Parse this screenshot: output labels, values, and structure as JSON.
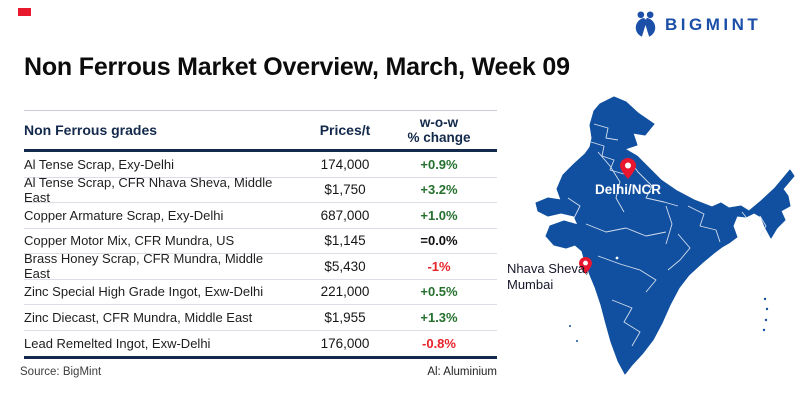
{
  "page": {
    "title": "Non Ferrous Market Overview, March, Week 09",
    "brand": "BIGMINT",
    "source": "Source: BigMint",
    "footnote": "Al: Aluminium"
  },
  "chart_data": {
    "type": "table",
    "title": "Non Ferrous Market Overview, March, Week 09",
    "columns": [
      "Non Ferrous grades",
      "Prices/t",
      "w-o-w % change"
    ],
    "header": {
      "grades": "Non Ferrous grades",
      "prices": "Prices/t",
      "change_line1": "w-o-w",
      "change_line2": "% change"
    },
    "rows": [
      {
        "grade": "Al Tense Scrap, Exy-Delhi",
        "price": "174,000",
        "change": "+0.9%",
        "direction": "up"
      },
      {
        "grade": "Al Tense Scrap, CFR Nhava Sheva, Middle East",
        "price": "$1,750",
        "change": "+3.2%",
        "direction": "up"
      },
      {
        "grade": "Copper Armature Scrap, Exy-Delhi",
        "price": "687,000",
        "change": "+1.0%",
        "direction": "up"
      },
      {
        "grade": "Copper Motor Mix, CFR Mundra, US",
        "price": "$1,145",
        "change": "=0.0%",
        "direction": "flat"
      },
      {
        "grade": "Brass Honey Scrap, CFR Mundra, Middle East",
        "price": "$5,430",
        "change": "-1%",
        "direction": "down"
      },
      {
        "grade": "Zinc Special High Grade Ingot, Exw-Delhi",
        "price": "221,000",
        "change": "+0.5%",
        "direction": "up"
      },
      {
        "grade": "Zinc Diecast, CFR Mundra, Middle East",
        "price": "$1,955",
        "change": "+1.3%",
        "direction": "up"
      },
      {
        "grade": "Lead Remelted Ingot, Exw-Delhi",
        "price": "176,000",
        "change": "-0.8%",
        "direction": "down"
      }
    ]
  },
  "map": {
    "pin_delhi_label": "Delhi/NCR",
    "pin_mumbai_label_line1": "Nhava Sheva,",
    "pin_mumbai_label_line2": "Mumbai"
  },
  "colors": {
    "brand_blue": "#1b4fa8",
    "map_blue": "#1150a0",
    "accent_red": "#e8192c",
    "pin_red": "#e8172f",
    "navy_line": "#13294b",
    "positive_green": "#25702e",
    "negative_red": "#e8222b"
  }
}
